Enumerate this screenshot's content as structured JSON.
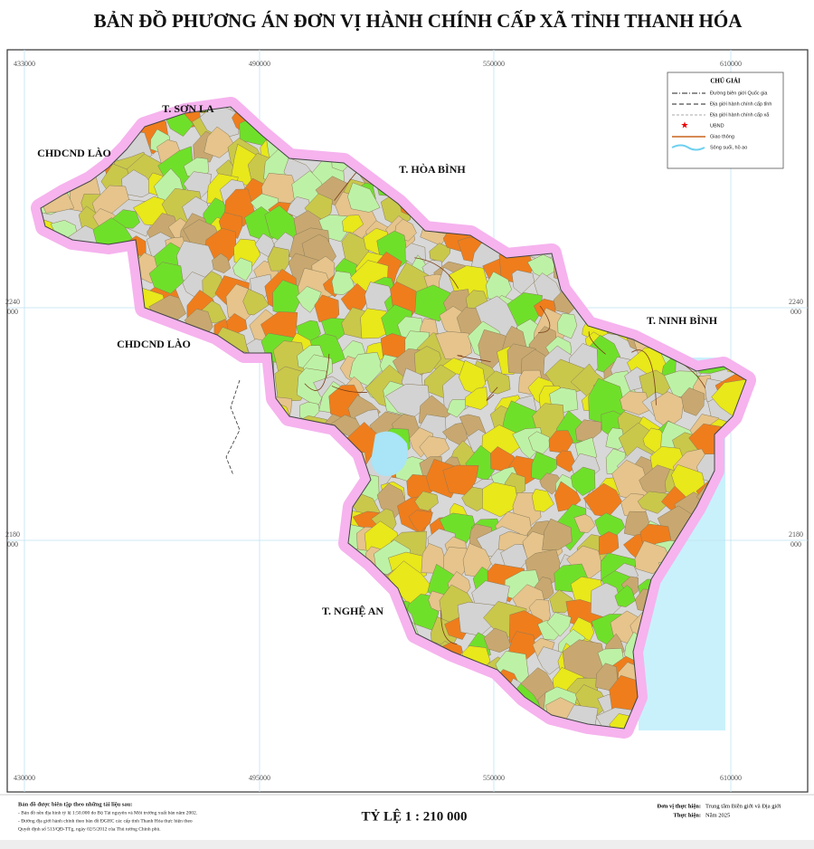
{
  "header": {
    "title": "BẢN ĐỒ PHƯƠNG ÁN ĐƠN VỊ HÀNH CHÍNH CẤP XÃ TỈNH THANH HÓA"
  },
  "coordinates": {
    "top": [
      "433000",
      "490000",
      "550000",
      "610000"
    ],
    "bottom": [
      "430000",
      "495000",
      "550000",
      "610000"
    ],
    "left": [
      [
        "2240",
        "000"
      ],
      [
        "2180",
        "000"
      ]
    ],
    "right": [
      [
        "2240",
        "000"
      ],
      [
        "2180",
        "000"
      ]
    ]
  },
  "legend": {
    "title": "CHÚ GIẢI",
    "items": [
      "Đường biên giới Quốc gia",
      "Địa giới hành chính cấp tỉnh",
      "Địa giới hành chính cấp xã",
      "UBND",
      "Giao thông",
      "Sông suối, hồ ao"
    ]
  },
  "labels": [
    "T. SƠN LA",
    "CHDCND LÀO",
    "T. HÒA BÌNH",
    "CHDCND LÀO",
    "T. NINH BÌNH",
    "T. NGHỆ AN"
  ],
  "footer": {
    "sources": [
      "Bản đồ được biên tập theo những tài liệu sau:",
      "- Bản đồ nền địa hình tỷ lệ 1:50.000 do Bộ Tài nguyên và Môi trường xuất bản năm 2002.",
      "- Đường địa giới hành chính theo bản đồ ĐGHC các cấp tỉnh Thanh Hóa thực hiện theo",
      "Quyết định số 513/QĐ-TTg, ngày 02/5/2012 của Thủ tướng Chính phủ."
    ],
    "scale": "TỶ LỆ 1 : 210 000",
    "credits": [
      [
        "Đơn vị thực hiện:",
        "Trung tâm Biên giới và Địa giới"
      ],
      [
        "Thực hiện:",
        "Năm 2025"
      ]
    ]
  }
}
